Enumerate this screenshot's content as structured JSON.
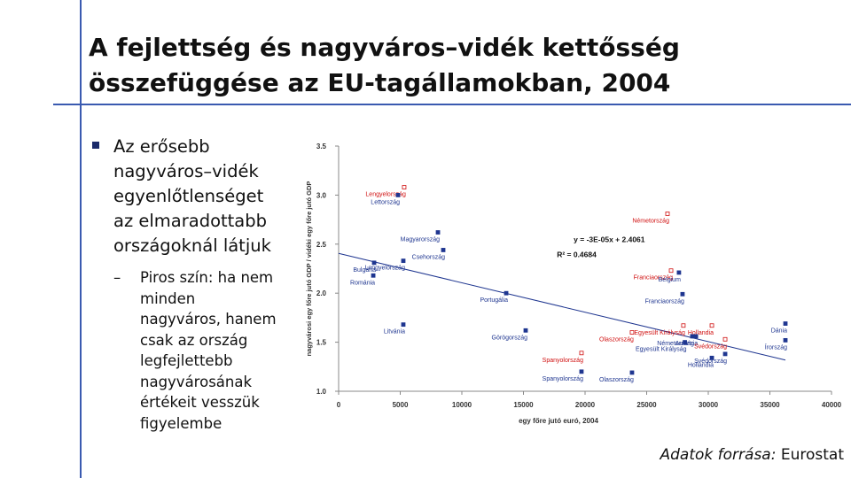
{
  "slide": {
    "title": [
      "A fejlettség és nagyváros–vidék kettősség",
      "összefüggése az EU-tagállamokban, 2004"
    ],
    "bullet": [
      "Az erősebb",
      "nagyváros–vidék",
      "egyenlőtlenséget",
      "az elmaradottabb",
      "országoknál látjuk"
    ],
    "sub_bullet_dash": "–",
    "sub_bullet": [
      "Piros szín: ha nem",
      "minden",
      "nagyváros, hanem",
      "csak az ország",
      "legfejlettebb",
      "nagyvárosának",
      "értékeit vesszük",
      "figyelembe"
    ],
    "source_label": "Adatok forrása:",
    "source": "Eurostat"
  },
  "chart_data": {
    "type": "scatter",
    "xlabel": "egy főre jutó euró, 2004",
    "ylabel": "nagyvárosi egy főre jutó GDP / vidéki egy főre jutó GDP",
    "xlim": [
      0,
      40000
    ],
    "ylim": [
      1,
      3.5
    ],
    "xticks": [
      0,
      5000,
      10000,
      15000,
      20000,
      25000,
      30000,
      35000,
      40000
    ],
    "yticks": [
      {
        "value": 1,
        "label": "1.0"
      },
      1.5,
      {
        "value": 2,
        "label": "2.0"
      },
      2.5,
      {
        "value": 3,
        "label": "3.0"
      },
      3.5
    ],
    "points": [
      {
        "label": "Lengyelország",
        "x": 5320,
        "y": 3.08,
        "color": "#d01010"
      },
      {
        "label": "Lettország",
        "x": 4820,
        "y": 3.0,
        "color": "#1f3690"
      },
      {
        "label": "Németország",
        "x": 26690,
        "y": 2.81,
        "color": "#d01010"
      },
      {
        "label": "Magyarország",
        "x": 8060,
        "y": 2.62,
        "color": "#1f3690"
      },
      {
        "label": "Csehország",
        "x": 8490,
        "y": 2.44,
        "color": "#1f3690"
      },
      {
        "label": "Bulgária",
        "x": 2880,
        "y": 2.31,
        "color": "#1f3690"
      },
      {
        "label": "Lengyelország",
        "x": 5250,
        "y": 2.33,
        "color": "#1f3690"
      },
      {
        "label": "Románia",
        "x": 2810,
        "y": 2.18,
        "color": "#1f3690"
      },
      {
        "label": "Franciaország",
        "x": 26980,
        "y": 2.23,
        "color": "#d01010"
      },
      {
        "label": "Belgium",
        "x": 27620,
        "y": 2.21,
        "color": "#1f3690"
      },
      {
        "label": "Portugália",
        "x": 13600,
        "y": 2.0,
        "color": "#1f3690"
      },
      {
        "label": "Franciaország",
        "x": 27910,
        "y": 1.99,
        "color": "#1f3690"
      },
      {
        "label": "Egyesült Királyság",
        "x": 27980,
        "y": 1.67,
        "color": "#d01010"
      },
      {
        "label": "Hollandia",
        "x": 30290,
        "y": 1.67,
        "color": "#d01010"
      },
      {
        "label": "Olaszország",
        "x": 23810,
        "y": 1.6,
        "color": "#d01010"
      },
      {
        "label": "Litvánia",
        "x": 5250,
        "y": 1.68,
        "color": "#1f3690"
      },
      {
        "label": "Görögország",
        "x": 15180,
        "y": 1.62,
        "color": "#1f3690"
      },
      {
        "label": "Dánia",
        "x": 36260,
        "y": 1.69,
        "color": "#1f3690"
      },
      {
        "label": "Németország",
        "x": 28700,
        "y": 1.56,
        "color": "#1f3690"
      },
      {
        "label": "Ausztria",
        "x": 29000,
        "y": 1.56,
        "color": "#1f3690"
      },
      {
        "label": "Svédország",
        "x": 31370,
        "y": 1.53,
        "color": "#d01010"
      },
      {
        "label": "Írország",
        "x": 36260,
        "y": 1.52,
        "color": "#1f3690"
      },
      {
        "label": "Egyesült Királyság",
        "x": 28100,
        "y": 1.5,
        "color": "#1f3690"
      },
      {
        "label": "Spanyolország",
        "x": 19710,
        "y": 1.39,
        "color": "#d01010"
      },
      {
        "label": "Svédország",
        "x": 31370,
        "y": 1.38,
        "color": "#1f3690"
      },
      {
        "label": "Hollandia",
        "x": 30290,
        "y": 1.34,
        "color": "#1f3690"
      },
      {
        "label": "Spanyolország",
        "x": 19710,
        "y": 1.2,
        "color": "#1f3690"
      },
      {
        "label": "Olaszország",
        "x": 23810,
        "y": 1.19,
        "color": "#1f3690"
      }
    ],
    "trendline": {
      "slope": -3e-05,
      "intercept": 2.4061,
      "color": "#1f3690",
      "equation": "y = -3E-05x + 2.4061",
      "r2": "R² = 0.4684"
    }
  }
}
